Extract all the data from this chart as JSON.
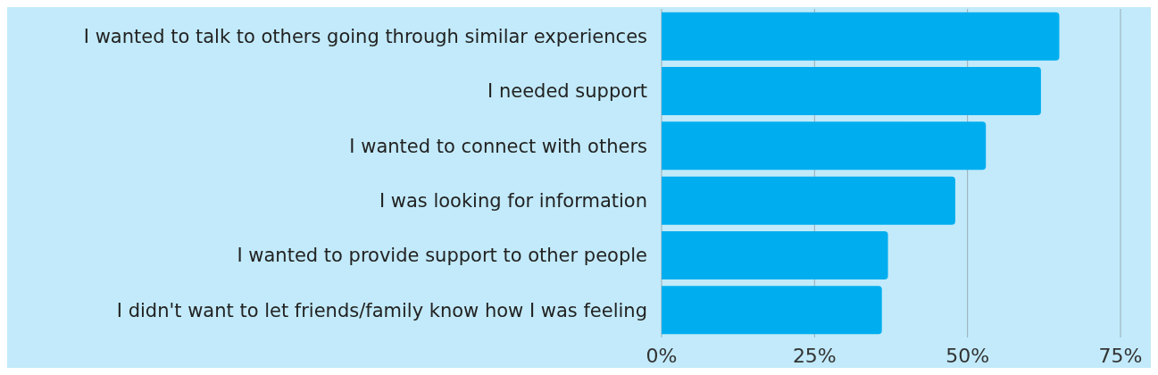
{
  "chart_data": {
    "type": "bar",
    "orientation": "horizontal",
    "categories": [
      "I wanted to talk to others going through similar experiences",
      "I needed support",
      "I wanted to connect with others",
      "I was looking for information",
      "I wanted to provide support to other people",
      "I didn't want to let friends/family know how I was feeling"
    ],
    "values": [
      65,
      62,
      53,
      48,
      37,
      36
    ],
    "color": "#00aeef",
    "xlim": [
      0,
      75
    ],
    "xticks": [
      {
        "value": 0,
        "label": "0%"
      },
      {
        "value": 25,
        "label": "25%"
      },
      {
        "value": 50,
        "label": "50%"
      },
      {
        "value": 75,
        "label": "75%"
      }
    ],
    "grid": "x"
  }
}
